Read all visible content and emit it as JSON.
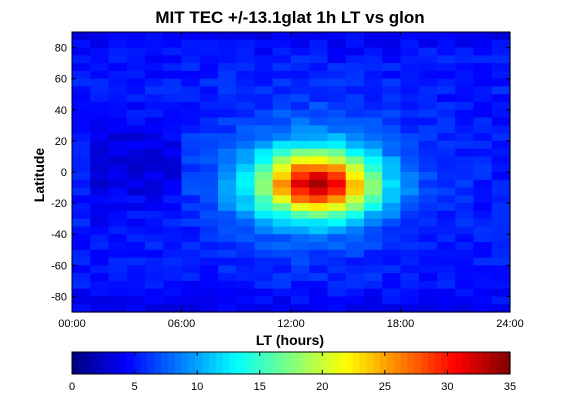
{
  "chart_data": {
    "type": "heatmap",
    "title": "MIT TEC +/-13.1glat 1h LT vs glon",
    "xlabel": "LT (hours)",
    "ylabel": "Latitude",
    "x_range": [
      0,
      24
    ],
    "y_range": [
      -90,
      90
    ],
    "x_ticks": [
      "00:00",
      "06:00",
      "12:00",
      "18:00",
      "24:00"
    ],
    "y_ticks": [
      "80",
      "60",
      "40",
      "20",
      "0",
      "-20",
      "-40",
      "-60",
      "-80"
    ],
    "color_range": [
      0,
      35
    ],
    "colorbar_ticks": [
      "0",
      "5",
      "10",
      "15",
      "20",
      "25",
      "30",
      "35"
    ],
    "colormap": "jet",
    "grid": false,
    "cell_size": {
      "lt_hours": 1,
      "latitude_deg": 5
    },
    "field_model": "approximate TEC field read from the image: background ~4-6, dayside peak ~27 near LT 13-14, latitude -5 to -10"
  }
}
